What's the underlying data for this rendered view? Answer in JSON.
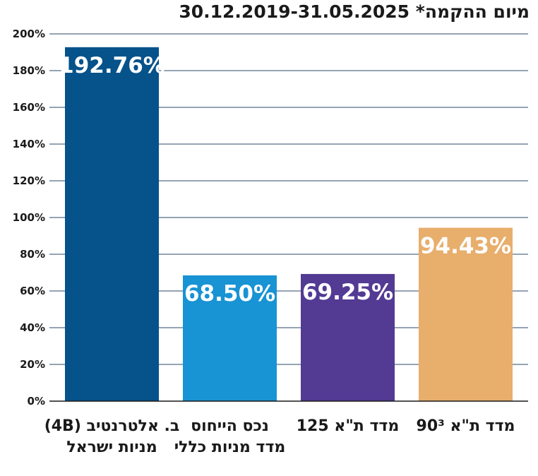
{
  "title": "מיום ההקמה* 30.12.2019-31.05.2025",
  "chart_data": {
    "type": "bar",
    "title": "מיום ההקמה* 30.12.2019-31.05.2025",
    "categories": [
      [
        "ב. אלטרנטיב (4B)",
        "מניות ישראל"
      ],
      [
        "נכס הייחוס",
        "מדד מניות כללי"
      ],
      [
        "מדד ת\"א 125"
      ],
      [
        "מדד ת\"א 90³"
      ]
    ],
    "values": [
      192.76,
      68.5,
      69.25,
      94.43
    ],
    "data_labels": [
      "192.76%",
      "68.50%",
      "69.25%",
      "94.43%"
    ],
    "colors": [
      "#06528a",
      "#1893d3",
      "#533a93",
      "#e8ae6c"
    ],
    "ylim": [
      0,
      200
    ],
    "yticks": [
      0,
      20,
      40,
      60,
      80,
      100,
      120,
      140,
      160,
      180,
      200
    ],
    "ytick_labels": [
      "0%",
      "20%",
      "40%",
      "60%",
      "80%",
      "100%",
      "120%",
      "140%",
      "160%",
      "180%",
      "200%"
    ],
    "grid": true,
    "grid_color": "#2a4a6a",
    "xlabel": "",
    "ylabel": ""
  }
}
